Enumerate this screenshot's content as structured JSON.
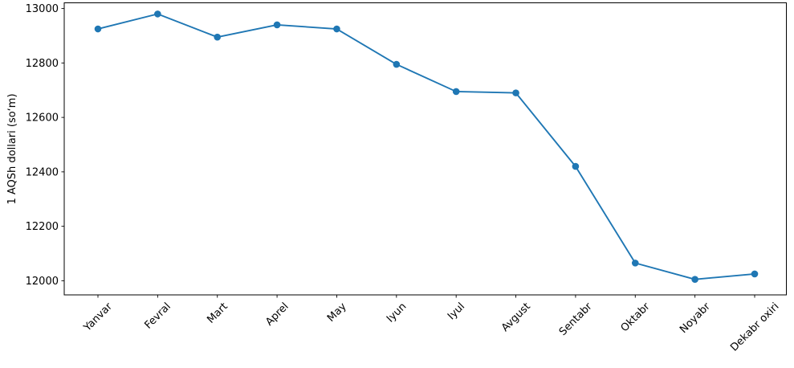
{
  "chart_data": {
    "type": "line",
    "title": "",
    "xlabel": "",
    "ylabel": "1 AQSh dollari (soʻm)",
    "categories": [
      "Yanvar",
      "Fevral",
      "Mart",
      "Aprel",
      "May",
      "Iyun",
      "Iyul",
      "Avgust",
      "Sentabr",
      "Oktabr",
      "Noyabr",
      "Dekabr oxiri"
    ],
    "values": [
      12925,
      12980,
      12895,
      12940,
      12925,
      12795,
      12695,
      12690,
      12420,
      12065,
      12005,
      12025
    ],
    "yticks": [
      12000,
      12200,
      12400,
      12600,
      12800,
      13000
    ],
    "ylim": [
      11948,
      13021
    ],
    "x_tick_rotation": 45,
    "grid": false,
    "legend": "none",
    "line_color": "#1f77b4",
    "marker_color": "#1f77b4",
    "marker": "o",
    "axis_color": "#000000",
    "background": "#ffffff"
  }
}
